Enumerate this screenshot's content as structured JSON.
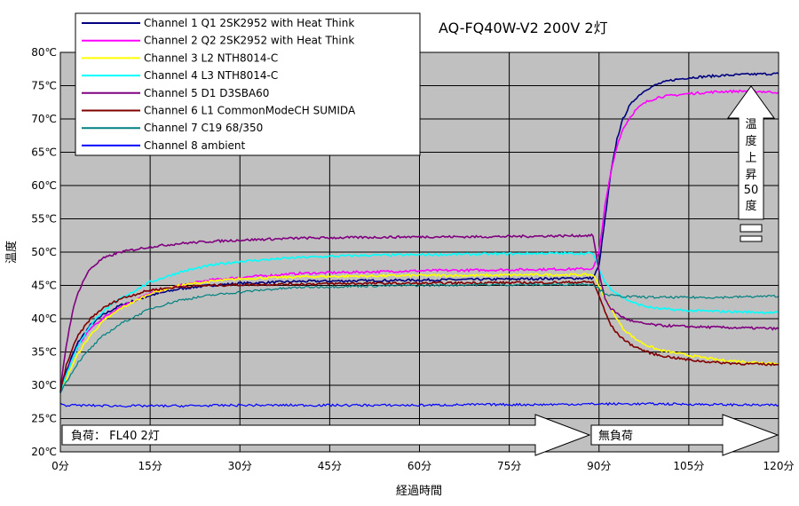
{
  "chart_data": {
    "type": "line",
    "title": "AQ-FQ40W-V2 200V 2灯",
    "xlabel": "経過時間",
    "ylabel": "温度",
    "xlim": [
      0,
      120
    ],
    "ylim": [
      20,
      80
    ],
    "x_ticks": [
      0,
      15,
      30,
      45,
      60,
      75,
      90,
      105,
      120
    ],
    "x_tick_labels": [
      "0分",
      "15分",
      "30分",
      "45分",
      "60分",
      "75分",
      "90分",
      "105分",
      "120分"
    ],
    "y_ticks": [
      20,
      25,
      30,
      35,
      40,
      45,
      50,
      55,
      60,
      65,
      70,
      75,
      80
    ],
    "y_tick_labels": [
      "20℃",
      "25℃",
      "30℃",
      "35℃",
      "40℃",
      "45℃",
      "50℃",
      "55℃",
      "60℃",
      "65℃",
      "70℃",
      "75℃",
      "80℃"
    ],
    "grid": true,
    "legend_position": "top-left",
    "plot_background": "#c0c0c0",
    "series": [
      {
        "name": "Channel 1  Q1  2SK2952  with Heat Think",
        "color": "#000080",
        "x": [
          0,
          1,
          2,
          3,
          5,
          7,
          10,
          15,
          20,
          25,
          30,
          40,
          50,
          60,
          70,
          80,
          89,
          90,
          91,
          92,
          93,
          94,
          95,
          96,
          97,
          98,
          100,
          102,
          105,
          110,
          115,
          120
        ],
        "y": [
          29,
          32,
          34.5,
          36.5,
          39,
          40.5,
          42,
          43.5,
          44.5,
          45,
          45.3,
          45.6,
          45.7,
          45.8,
          45.9,
          46,
          46.1,
          48,
          55,
          62,
          67,
          70,
          71.8,
          73,
          73.8,
          74.5,
          75.3,
          75.8,
          76.2,
          76.5,
          76.7,
          76.8
        ]
      },
      {
        "name": "Channel 2  Q2  2SK2952  with Heat Think",
        "color": "#ff00ff",
        "x": [
          0,
          1,
          2,
          3,
          5,
          7,
          10,
          15,
          20,
          25,
          30,
          40,
          50,
          60,
          70,
          80,
          89,
          90,
          91,
          92,
          93,
          94,
          95,
          96,
          97,
          98,
          100,
          105,
          110,
          115,
          120
        ],
        "y": [
          29,
          31.5,
          34,
          36,
          38.5,
          40,
          41.8,
          43.8,
          45,
          45.8,
          46.2,
          46.8,
          47,
          47.2,
          47.3,
          47.4,
          47.5,
          50,
          57,
          62,
          66,
          68.5,
          70,
          71.2,
          72,
          72.6,
          73.3,
          73.8,
          74.1,
          74.2,
          74
        ]
      },
      {
        "name": "Channel 3  L2  NTH8014-C",
        "color": "#ffff00",
        "x": [
          0,
          1,
          2,
          3,
          5,
          7,
          10,
          15,
          20,
          25,
          30,
          40,
          50,
          60,
          70,
          80,
          89,
          90,
          91,
          92,
          93,
          94,
          95,
          96,
          98,
          100,
          105,
          110,
          115,
          120
        ],
        "y": [
          29,
          31,
          33,
          34.8,
          37.5,
          39.5,
          41.5,
          43.8,
          45,
          45.6,
          46,
          46.3,
          46.4,
          46.5,
          46.5,
          46.6,
          46.6,
          45,
          43,
          41.5,
          40,
          38.5,
          37.8,
          37,
          36,
          35.3,
          34.5,
          33.8,
          33.5,
          33.3
        ]
      },
      {
        "name": "Channel 4  L3  NTH8014-C",
        "color": "#00ffff",
        "x": [
          0,
          1,
          2,
          3,
          5,
          7,
          10,
          15,
          20,
          25,
          30,
          40,
          50,
          60,
          70,
          80,
          89,
          90,
          91,
          92,
          93,
          94,
          95,
          96,
          98,
          100,
          105,
          110,
          115,
          120
        ],
        "y": [
          29,
          31.5,
          34,
          36,
          39,
          41,
          43,
          45.5,
          47,
          48,
          48.6,
          49.2,
          49.5,
          49.6,
          49.7,
          49.8,
          49.8,
          47.5,
          45.5,
          44.5,
          43.8,
          43.2,
          42.7,
          42.3,
          41.8,
          41.5,
          41.2,
          41.1,
          41,
          40.9
        ]
      },
      {
        "name": "Channel 5  D1  D3SBA60",
        "color": "#800080",
        "x": [
          0,
          0.5,
          1,
          2,
          3,
          4,
          5,
          7,
          10,
          15,
          20,
          25,
          30,
          40,
          50,
          60,
          70,
          80,
          89,
          90,
          91,
          92,
          93,
          94,
          95,
          96,
          98,
          100,
          105,
          110,
          115,
          120
        ],
        "y": [
          29,
          33,
          36,
          41,
          44,
          46,
          47.5,
          49,
          50,
          50.8,
          51.3,
          51.6,
          51.8,
          52.1,
          52.2,
          52.3,
          52.3,
          52.4,
          52.5,
          47,
          43,
          41.5,
          40.8,
          40.2,
          39.8,
          39.5,
          39.2,
          39,
          38.8,
          38.7,
          38.6,
          38.5
        ]
      },
      {
        "name": "Channel 6  L1  CommonModeCH  SUMIDA",
        "color": "#800000",
        "x": [
          0,
          1,
          2,
          3,
          5,
          7,
          10,
          15,
          20,
          25,
          30,
          40,
          50,
          60,
          70,
          80,
          89,
          90,
          91,
          92,
          93,
          94,
          95,
          96,
          98,
          100,
          105,
          110,
          115,
          120
        ],
        "y": [
          29,
          33,
          35.5,
          37.5,
          40,
          41.5,
          43,
          44.3,
          44.8,
          45,
          45.1,
          45.2,
          45.3,
          45.3,
          45.4,
          45.4,
          45.5,
          43.5,
          41,
          39,
          37.8,
          37,
          36.3,
          35.8,
          35,
          34.5,
          33.8,
          33.4,
          33.2,
          33.1
        ]
      },
      {
        "name": "Channel 7  C19  68/350",
        "color": "#008080",
        "x": [
          0,
          1,
          2,
          3,
          5,
          7,
          10,
          15,
          20,
          25,
          30,
          35,
          40,
          50,
          60,
          70,
          80,
          89,
          90,
          91,
          92,
          93,
          95,
          100,
          105,
          110,
          115,
          120
        ],
        "y": [
          29,
          30.5,
          32,
          33.5,
          35.5,
          37.3,
          39.2,
          41.5,
          42.8,
          43.5,
          44,
          44.4,
          44.7,
          44.9,
          45,
          45.1,
          45.1,
          45.2,
          44.5,
          43.8,
          43.5,
          43.4,
          43.3,
          43.2,
          43.2,
          43.2,
          43.3,
          43.4
        ]
      },
      {
        "name": "Channel 8  ambient",
        "color": "#0000ff",
        "x": [
          0,
          1,
          2,
          10,
          20,
          30,
          40,
          50,
          60,
          70,
          80,
          90,
          100,
          110,
          120
        ],
        "y": [
          27.2,
          27,
          27,
          26.9,
          26.9,
          27,
          27,
          27,
          27,
          27.1,
          27.1,
          27.2,
          27.2,
          27.1,
          27
        ]
      }
    ],
    "annotations": {
      "load_on": "負荷：  FL40  2灯",
      "load_off": "無負荷",
      "rise_chars": [
        "温",
        "度",
        "上",
        "昇",
        "50",
        "度"
      ]
    }
  }
}
